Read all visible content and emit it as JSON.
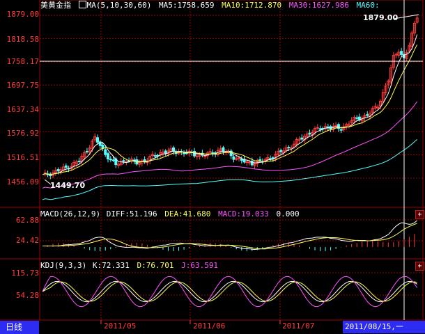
{
  "header": {
    "symbol": "美黄金指",
    "ma_params": "MA(5,10,30,60)",
    "ma5": "MA5:1758.659",
    "ma10": "MA10:1712.870",
    "ma30": "MA30:1627.986",
    "ma60": "MA60:"
  },
  "price_axis": [
    "1879.00",
    "1818.58",
    "1758.17",
    "1697.75",
    "1637.34",
    "1576.92",
    "1516.51",
    "1456.09"
  ],
  "annotations": {
    "high": "1879.00",
    "low": "1449.70"
  },
  "macd": {
    "header": "MACD(26,12,9)",
    "diff": "DIFF:51.196",
    "dea": "DEA:41.680",
    "macd": "MACD:19.033",
    "extra": "0.000",
    "axis": [
      "62.88",
      "24.42"
    ]
  },
  "kdj": {
    "header": "KDJ(9,3,3)",
    "k": "K:72.331",
    "d": "D:76.701",
    "j": "J:63.591",
    "axis": [
      "115.73",
      "54.28"
    ]
  },
  "x_axis": [
    "2011/05",
    "2011/06",
    "2011/07"
  ],
  "period_label": "日线",
  "cursor_date": "2011/08/15,一",
  "colors": {
    "up": "#ff3c3c",
    "down": "#54ffff",
    "ma5": "#ffffff",
    "ma10": "#ffff54",
    "ma30": "#ff54ff",
    "ma60": "#54ffff",
    "grid": "#a00000",
    "axis_text": "#ff3c3c"
  }
}
